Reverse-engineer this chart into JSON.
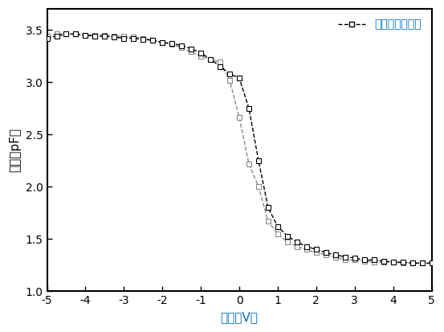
{
  "title": "",
  "xlabel": "电压（V）",
  "ylabel": "电容（pF）",
  "legend_label": "无钓金属纳米晶",
  "xlim": [
    -5,
    5
  ],
  "ylim": [
    1.0,
    3.7
  ],
  "yticks": [
    1.0,
    1.5,
    2.0,
    2.5,
    3.0,
    3.5
  ],
  "xticks": [
    -5,
    -4,
    -3,
    -2,
    -1,
    0,
    1,
    2,
    3,
    4,
    5
  ],
  "line_color_black": "#000000",
  "line_color_gray": "#888888",
  "marker": "s",
  "markersize": 5,
  "xlabel_color": "#0070C0",
  "ylabel_color": "#000000",
  "legend_text_color": "#0070C0",
  "sweep_forward_x": [
    -5.0,
    -4.75,
    -4.5,
    -4.25,
    -4.0,
    -3.75,
    -3.5,
    -3.25,
    -3.0,
    -2.75,
    -2.5,
    -2.25,
    -2.0,
    -1.75,
    -1.5,
    -1.25,
    -1.0,
    -0.75,
    -0.5,
    -0.25,
    0.0,
    0.25,
    0.5,
    0.75,
    1.0,
    1.25,
    1.5,
    1.75,
    2.0,
    2.25,
    2.5,
    2.75,
    3.0,
    3.25,
    3.5,
    3.75,
    4.0,
    4.25,
    4.5,
    4.75,
    5.0
  ],
  "sweep_forward_y": [
    3.42,
    3.44,
    3.46,
    3.46,
    3.45,
    3.44,
    3.44,
    3.43,
    3.42,
    3.42,
    3.41,
    3.4,
    3.38,
    3.37,
    3.35,
    3.32,
    3.28,
    3.22,
    3.15,
    3.08,
    3.04,
    2.75,
    2.25,
    1.8,
    1.62,
    1.53,
    1.47,
    1.43,
    1.4,
    1.37,
    1.35,
    1.33,
    1.32,
    1.3,
    1.3,
    1.29,
    1.28,
    1.28,
    1.27,
    1.27,
    1.27
  ],
  "sweep_backward_x": [
    -5.0,
    -4.75,
    -4.5,
    -4.25,
    -4.0,
    -3.75,
    -3.5,
    -3.25,
    -3.0,
    -2.75,
    -2.5,
    -2.25,
    -2.0,
    -1.75,
    -1.5,
    -1.25,
    -1.0,
    -0.75,
    -0.5,
    -0.25,
    0.0,
    0.25,
    0.5,
    0.75,
    1.0,
    1.25,
    1.5,
    1.75,
    2.0,
    2.25,
    2.5,
    2.75,
    3.0,
    3.25,
    3.5,
    3.75,
    4.0,
    4.25,
    4.5,
    4.75,
    5.0
  ],
  "sweep_backward_y": [
    3.44,
    3.46,
    3.46,
    3.46,
    3.45,
    3.45,
    3.45,
    3.44,
    3.44,
    3.43,
    3.42,
    3.4,
    3.38,
    3.36,
    3.33,
    3.29,
    3.25,
    3.22,
    3.19,
    3.02,
    2.66,
    2.22,
    2.0,
    1.67,
    1.55,
    1.47,
    1.43,
    1.4,
    1.37,
    1.35,
    1.33,
    1.3,
    1.3,
    1.29,
    1.28,
    1.28,
    1.28,
    1.27,
    1.27,
    1.27,
    1.27
  ]
}
